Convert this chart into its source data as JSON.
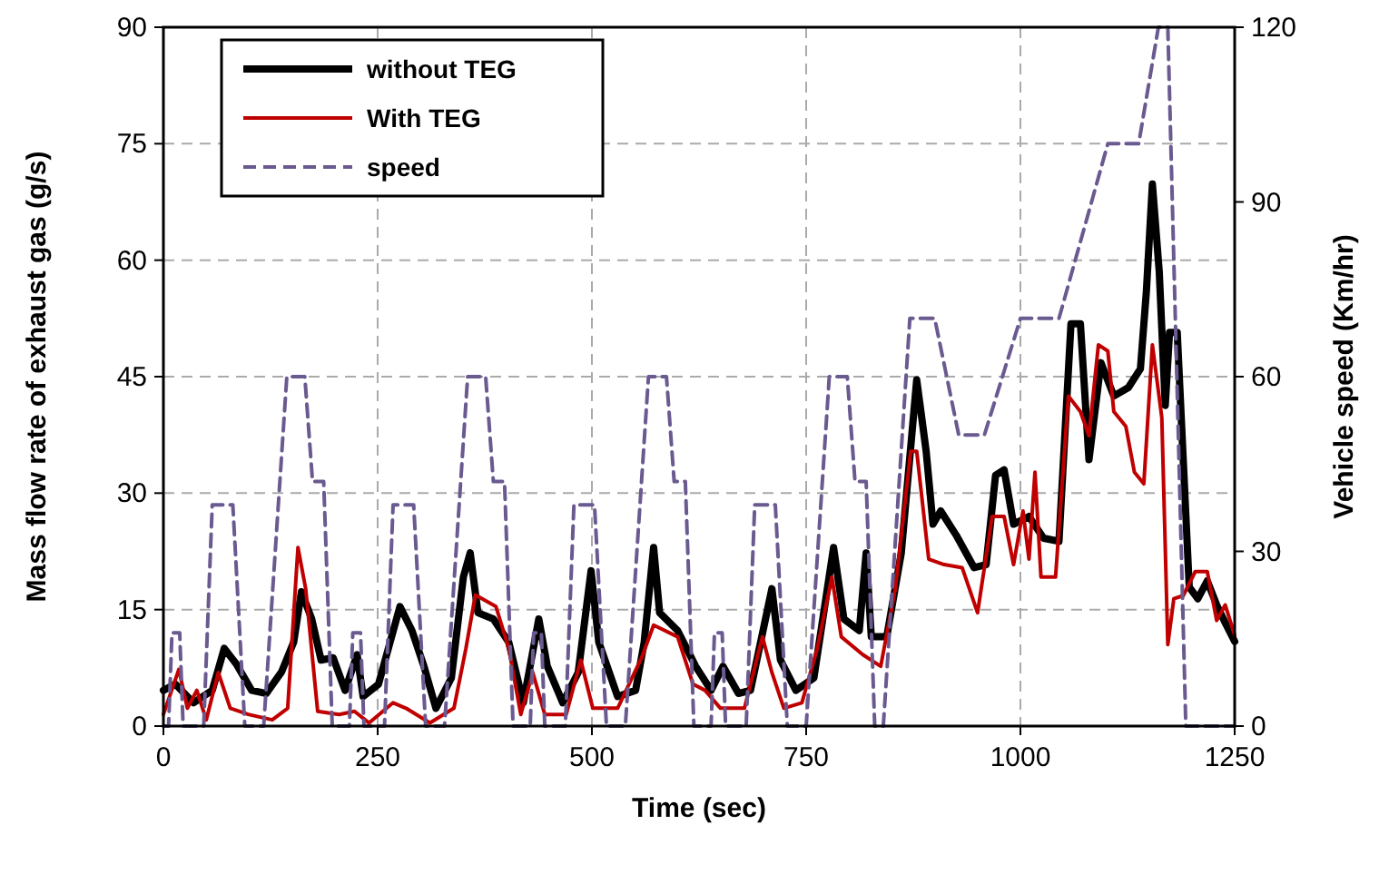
{
  "chart_data": {
    "type": "line",
    "xlabel": "Time (sec)",
    "ylabel": "Mass flow rate of exhaust gas (g/s)",
    "y2label": "Vehicle speed (Km/hr)",
    "xlim": [
      0,
      1250
    ],
    "xticks": [
      0,
      250,
      500,
      750,
      1000,
      1250
    ],
    "ylim": [
      0,
      90
    ],
    "yticks": [
      0,
      15,
      30,
      45,
      60,
      75,
      90
    ],
    "y2lim": [
      0,
      120
    ],
    "y2ticks": [
      0,
      30,
      60,
      90,
      120
    ],
    "grid": true,
    "legend": "top left",
    "series": [
      {
        "name": "without TEG",
        "color": "#000000",
        "x": [
          0,
          14,
          35,
          57,
          71,
          85,
          103,
          120,
          138,
          152,
          161,
          173,
          184,
          198,
          212,
          226,
          233,
          251,
          276,
          290,
          304,
          318,
          336,
          350,
          358,
          367,
          385,
          403,
          420,
          438,
          448,
          466,
          484,
          499,
          508,
          530,
          551,
          561,
          572,
          579,
          600,
          621,
          639,
          653,
          671,
          685,
          710,
          720,
          738,
          759,
          782,
          794,
          812,
          820,
          826,
          844,
          861,
          879,
          890,
          898,
          907,
          925,
          946,
          960,
          971,
          981,
          992,
          1010,
          1027,
          1045,
          1059,
          1070,
          1080,
          1094,
          1109,
          1126,
          1140,
          1147,
          1154,
          1162,
          1169,
          1174,
          1183,
          1197,
          1207,
          1218,
          1229,
          1239,
          1250
        ],
        "values": [
          4.6,
          5.4,
          3,
          4.6,
          10,
          8,
          4.6,
          4.2,
          7,
          10.8,
          17.3,
          13.8,
          8.5,
          8.8,
          4.6,
          9.2,
          3.8,
          5.4,
          15.4,
          12.3,
          7.7,
          2.3,
          6.2,
          19.2,
          22.3,
          14.6,
          13.8,
          10.8,
          3,
          13.8,
          7.7,
          3,
          6.9,
          20,
          10.8,
          3.8,
          4.6,
          10.8,
          23,
          14.6,
          12.3,
          7.7,
          4.6,
          7.7,
          4.2,
          4.6,
          17.7,
          8.5,
          4.6,
          6.2,
          23,
          13.8,
          12.3,
          22.3,
          11.5,
          11.5,
          22.3,
          44.6,
          35.4,
          26,
          27.7,
          24.6,
          20.4,
          20.8,
          32.3,
          33,
          26,
          27,
          24.2,
          23.8,
          51.8,
          51.8,
          34.3,
          46.8,
          42.5,
          43.6,
          46,
          56,
          69.8,
          58.5,
          41.3,
          50.7,
          50.7,
          17.9,
          16.4,
          18.7,
          15.6,
          13.3,
          10.9
        ]
      },
      {
        "name": "With TEG",
        "color": "#c00000",
        "x": [
          0,
          18,
          28,
          39,
          50,
          64,
          78,
          99,
          127,
          145,
          157,
          166,
          180,
          205,
          223,
          240,
          268,
          283,
          311,
          339,
          353,
          364,
          388,
          403,
          417,
          431,
          445,
          470,
          487,
          501,
          530,
          558,
          572,
          600,
          618,
          632,
          650,
          678,
          699,
          710,
          724,
          745,
          763,
          780,
          791,
          816,
          837,
          854,
          872,
          879,
          893,
          911,
          932,
          950,
          967,
          981,
          992,
          1003,
          1010,
          1017,
          1024,
          1041,
          1056,
          1070,
          1080,
          1091,
          1102,
          1109,
          1123,
          1133,
          1144,
          1154,
          1165,
          1172,
          1179,
          1190,
          1204,
          1218,
          1229,
          1239,
          1250
        ],
        "values": [
          1.5,
          7.3,
          2.3,
          4.6,
          0.8,
          6.9,
          2.3,
          1.5,
          0.8,
          2.3,
          23,
          17.7,
          1.9,
          1.5,
          1.9,
          0.4,
          3,
          2.3,
          0.4,
          2.3,
          10,
          16.9,
          15.4,
          10,
          1.5,
          6.9,
          1.5,
          1.5,
          8.5,
          2.3,
          2.3,
          8.8,
          13,
          11.5,
          5.4,
          4.6,
          2.3,
          2.3,
          11.5,
          6.9,
          2.3,
          3,
          10,
          19.2,
          11.5,
          9.2,
          7.7,
          17.7,
          35.4,
          35.4,
          21.5,
          20.8,
          20.4,
          14.6,
          27,
          27,
          20.8,
          27.7,
          21.5,
          32.7,
          19.2,
          19.2,
          42.5,
          40.5,
          37.4,
          49.1,
          48.3,
          40.5,
          38.6,
          32.7,
          31.2,
          49.1,
          39.7,
          10.5,
          16.4,
          16.8,
          19.9,
          19.9,
          13.6,
          15.6,
          11.7
        ]
      },
      {
        "name": "speed",
        "color": "#6a5a90",
        "axis": "y2",
        "line_style": "dashed",
        "x": [
          0,
          6,
          10,
          19,
          23,
          47,
          57,
          81,
          95,
          117,
          144,
          165,
          174,
          187,
          197,
          217,
          221,
          230,
          234,
          258,
          268,
          292,
          306,
          328,
          355,
          376,
          385,
          398,
          408,
          428,
          432,
          441,
          445,
          469,
          479,
          503,
          517,
          539,
          566,
          587,
          596,
          609,
          619,
          639,
          643,
          652,
          656,
          680,
          690,
          714,
          728,
          750,
          777,
          798,
          807,
          820,
          830,
          840,
          871,
          900,
          928,
          958,
          1000,
          1045,
          1102,
          1138,
          1161,
          1172,
          1193,
          1250
        ],
        "values": [
          0,
          0,
          16,
          16,
          0,
          0,
          38,
          38,
          0,
          0,
          60,
          60,
          42,
          42,
          0,
          0,
          16,
          16,
          0,
          0,
          38,
          38,
          0,
          0,
          60,
          60,
          42,
          42,
          0,
          0,
          16,
          16,
          0,
          0,
          38,
          38,
          0,
          0,
          60,
          60,
          42,
          42,
          0,
          0,
          16,
          16,
          0,
          0,
          38,
          38,
          0,
          0,
          60,
          60,
          42,
          42,
          0,
          0,
          70,
          70,
          50,
          50,
          70,
          70,
          100,
          100,
          120,
          120,
          0,
          0
        ]
      }
    ]
  }
}
